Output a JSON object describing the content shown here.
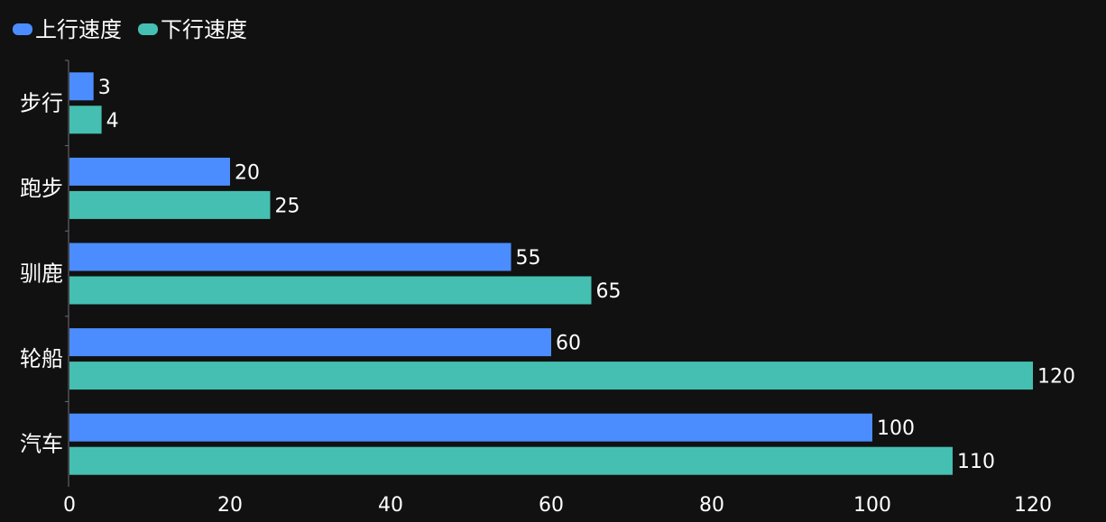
{
  "chart_data": {
    "type": "bar",
    "orientation": "horizontal",
    "categories": [
      "步行",
      "跑步",
      "驯鹿",
      "轮船",
      "汽车"
    ],
    "series": [
      {
        "name": "上行速度",
        "values": [
          3,
          20,
          55,
          60,
          100
        ],
        "color": "#4b8dff"
      },
      {
        "name": "下行速度",
        "values": [
          4,
          25,
          65,
          120,
          110
        ],
        "color": "#45bfb1"
      }
    ],
    "xlim": [
      0,
      120
    ],
    "xticks": [
      "0",
      "20",
      "40",
      "60",
      "80",
      "100",
      "120"
    ],
    "legend_position": "top-left",
    "grid": false,
    "data_labels": true
  }
}
